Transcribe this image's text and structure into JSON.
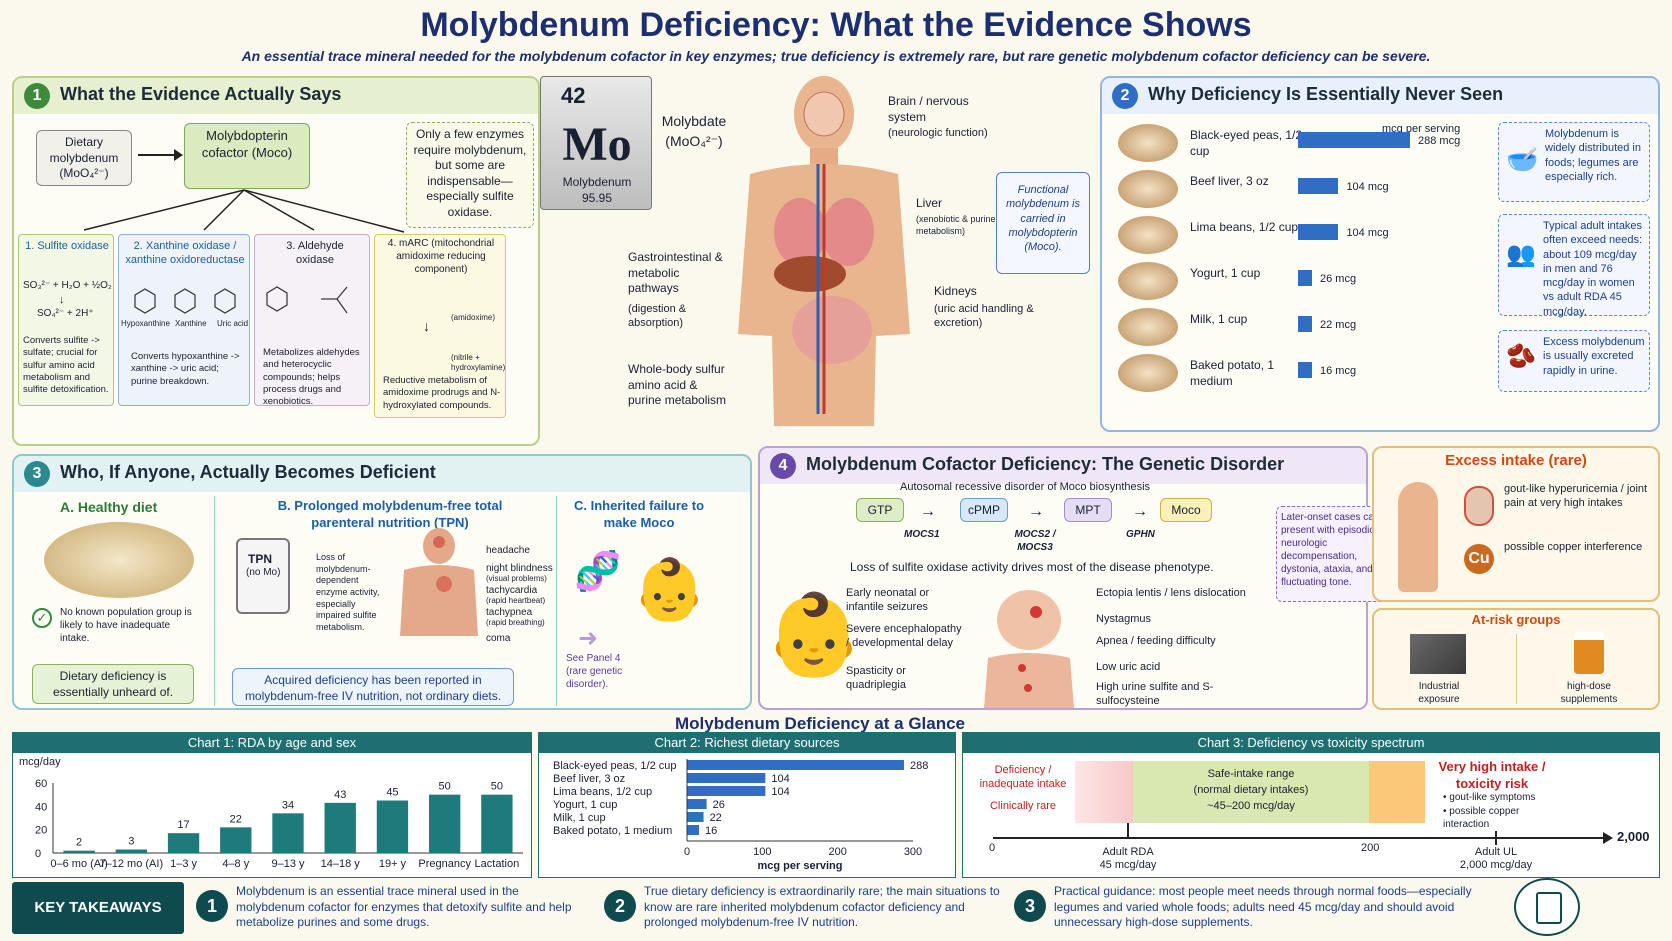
{
  "header": {
    "title": "Molybdenum Deficiency: What the Evidence Shows",
    "subtitle": "An essential trace mineral needed for the molybdenum cofactor in key enzymes; true deficiency is extremely rare, but rare genetic molybdenum cofactor deficiency can be severe."
  },
  "p1": {
    "num": "1",
    "title": "What the Evidence Actually Says",
    "dietary": "Dietary molybdenum (MoO₄²⁻)",
    "moco": "Molybdopterin cofactor (Moco)",
    "note": "Only a few enzymes require molybdenum, but some are indispensable—especially sulfite oxidase.",
    "enzymes": [
      {
        "title": "1. Sulfite oxidase",
        "eq1": "SO₃²⁻ + H₂O + ½O₂",
        "eq2": "SO₄²⁻ + 2H⁺",
        "desc": "Converts sulfite -> sulfate; crucial for sulfur amino acid metabolism and sulfite detoxification."
      },
      {
        "title": "2. Xanthine oxidase / xanthine oxidoreductase",
        "labels": [
          "Hypoxanthine",
          "Xanthine",
          "Uric acid"
        ],
        "desc": "Converts hypoxanthine -> xanthine -> uric acid; purine breakdown."
      },
      {
        "title": "3. Aldehyde oxidase",
        "desc": "Metabolizes aldehydes and heterocyclic compounds; helps process drugs and xenobiotics."
      },
      {
        "title": "4. mARC (mitochondrial amidoxime reducing component)",
        "lab1": "(amidoxime)",
        "lab2": "(nitrile + hydroxylamine)",
        "desc": "Reductive metabolism of amidoxime prodrugs and N-hydroxylated compounds."
      }
    ]
  },
  "element": {
    "number": "42",
    "symbol": "Mo",
    "name": "Molybdenum",
    "mass": "95.95",
    "molybdate": "Molybdate (MoO₄²⁻)"
  },
  "body": {
    "brain": "Brain / nervous system",
    "brain_sub": "(neurologic function)",
    "liver": "Liver",
    "liver_sub": "(xenobiotic & purine metabolism)",
    "kidneys": "Kidneys",
    "kidneys_sub": "(uric acid handling & excretion)",
    "gi": "Gastrointestinal & metabolic pathways",
    "gi_sub": "(digestion & absorption)",
    "whole": "Whole-body sulfur amino acid & purine metabolism",
    "functional": "Functional molybdenum is carried in molybdopterin (Moco)."
  },
  "p2": {
    "num": "2",
    "title": "Why Deficiency Is Essentially Never Seen",
    "unit": "mcg per serving",
    "foods": [
      {
        "name": "Black-eyed peas, 1/2 cup",
        "label": "288 mcg",
        "value": 288
      },
      {
        "name": "Beef liver, 3 oz",
        "label": "104 mcg",
        "value": 104
      },
      {
        "name": "Lima beans, 1/2 cup",
        "label": "104 mcg",
        "value": 104
      },
      {
        "name": "Yogurt, 1 cup",
        "label": "26 mcg",
        "value": 26
      },
      {
        "name": "Milk, 1 cup",
        "label": "22 mcg",
        "value": 22
      },
      {
        "name": "Baked potato, 1 medium",
        "label": "16 mcg",
        "value": 16
      }
    ],
    "notes": [
      "Molybdenum is widely distributed in foods; legumes are especially rich.",
      "Typical adult intakes often exceed needs: about 109 mcg/day in men and 76 mcg/day in women vs adult RDA 45 mcg/day.",
      "Excess molybdenum is usually excreted rapidly in urine."
    ]
  },
  "p3": {
    "num": "3",
    "title": "Who, If Anyone, Actually Becomes Deficient",
    "a_title": "A. Healthy diet",
    "a_text": "No known population group is likely to have inadequate intake.",
    "a_box": "Dietary deficiency is essentially unheard of.",
    "b_title": "B. Prolonged molybdenum-free total parenteral nutrition (TPN)",
    "tpn": "TPN",
    "tpn_sub": "(no Mo)",
    "b_text": "Loss of molybdenum-dependent enzyme activity, especially impaired sulfite metabolism.",
    "symptoms": [
      {
        "t": "headache",
        "s": ""
      },
      {
        "t": "night blindness",
        "s": "(visual problems)"
      },
      {
        "t": "tachycardia",
        "s": "(rapid heartbeat)"
      },
      {
        "t": "tachypnea",
        "s": "(rapid breathing)"
      },
      {
        "t": "coma",
        "s": ""
      }
    ],
    "b_box": "Acquired deficiency has been reported in molybdenum-free IV nutrition, not ordinary diets.",
    "c_title": "C. Inherited failure to make Moco",
    "c_text": "See Panel 4 (rare genetic disorder)."
  },
  "p4": {
    "num": "4",
    "title": "Molybdenum Cofactor Deficiency: The Genetic Disorder",
    "subtitle": "Autosomal recessive disorder of Moco biosynthesis",
    "steps": [
      "GTP",
      "cPMP",
      "MPT",
      "Moco"
    ],
    "genes": [
      "MOCS1",
      "MOCS2 / MOCS3",
      "GPHN"
    ],
    "loss": "Loss of sulfite oxidase activity drives most of the disease phenotype.",
    "later": "Later-onset cases can present with episodic neurologic decompensation, dystonia, ataxia, and fluctuating tone.",
    "left": [
      "Early neonatal or infantile seizures",
      "Severe encephalopathy / developmental delay",
      "Spasticity or quadriplegia"
    ],
    "right": [
      "Ectopia lentis / lens dislocation",
      "Nystagmus",
      "Apnea / feeding difficulty",
      "Low uric acid",
      "High urine sulfite and S-sulfocysteine"
    ]
  },
  "excess": {
    "title": "Excess intake (rare)",
    "gout": "gout-like hyperuricemia / joint pain at very high intakes",
    "copper": "possible copper interference",
    "cu": "Cu",
    "atrisk": "At-risk groups",
    "industrial": "Industrial exposure",
    "supplements": "high-dose supplements"
  },
  "glance": "Molybdenum Deficiency at a Glance",
  "chart_data": [
    {
      "type": "bar",
      "title": "Chart 1: RDA by age and sex",
      "ylabel": "mcg/day",
      "ylim": [
        0,
        60
      ],
      "yticks": [
        0,
        20,
        40,
        60
      ],
      "categories": [
        "0–6 mo (AI)",
        "7–12 mo (AI)",
        "1–3 y",
        "4–8 y",
        "9–13 y",
        "14–18 y",
        "19+ y",
        "Pregnancy",
        "Lactation"
      ],
      "values": [
        2,
        3,
        17,
        22,
        34,
        43,
        45,
        50,
        50
      ]
    },
    {
      "type": "bar",
      "orientation": "horizontal",
      "title": "Chart 2: Richest dietary sources",
      "xlabel": "mcg per serving",
      "xlim": [
        0,
        300
      ],
      "xticks": [
        0,
        100,
        200,
        300
      ],
      "categories": [
        "Black-eyed peas, 1/2 cup",
        "Beef liver, 3 oz",
        "Lima beans, 1/2 cup",
        "Yogurt, 1 cup",
        "Milk, 1 cup",
        "Baked potato, 1 medium"
      ],
      "values": [
        288,
        104,
        104,
        26,
        22,
        16
      ]
    },
    {
      "type": "spectrum",
      "title": "Chart 3: Deficiency vs toxicity spectrum",
      "ticks": [
        "0",
        "200",
        "2,000"
      ],
      "def_label": "Deficiency / inadequate intake",
      "def_sub": "Clinically rare",
      "safe_label": "Safe-intake range",
      "safe_sub": "(normal dietary intakes)",
      "safe_range": "~45–200 mcg/day",
      "high_label": "Very high intake / toxicity risk",
      "high_bullets": [
        "gout-like symptoms",
        "possible copper interaction"
      ],
      "rda_label": "Adult RDA",
      "rda_value": "45 mcg/day",
      "ul_label": "Adult UL",
      "ul_value": "2,000 mcg/day"
    }
  ],
  "takeaways": {
    "label": "KEY TAKEAWAYS",
    "items": [
      "Molybdenum is an essential trace mineral used in the molybdenum cofactor for enzymes that detoxify sulfite and help metabolize purines and some drugs.",
      "True dietary deficiency is extraordinarily rare; the main situations to know are rare inherited molybdenum cofactor deficiency and prolonged molybdenum-free IV nutrition.",
      "Practical guidance: most people meet needs through normal foods—especially legumes and varied whole foods; adults need 45 mcg/day and should avoid unnecessary high-dose supplements."
    ],
    "nums": [
      "1",
      "2",
      "3"
    ]
  }
}
